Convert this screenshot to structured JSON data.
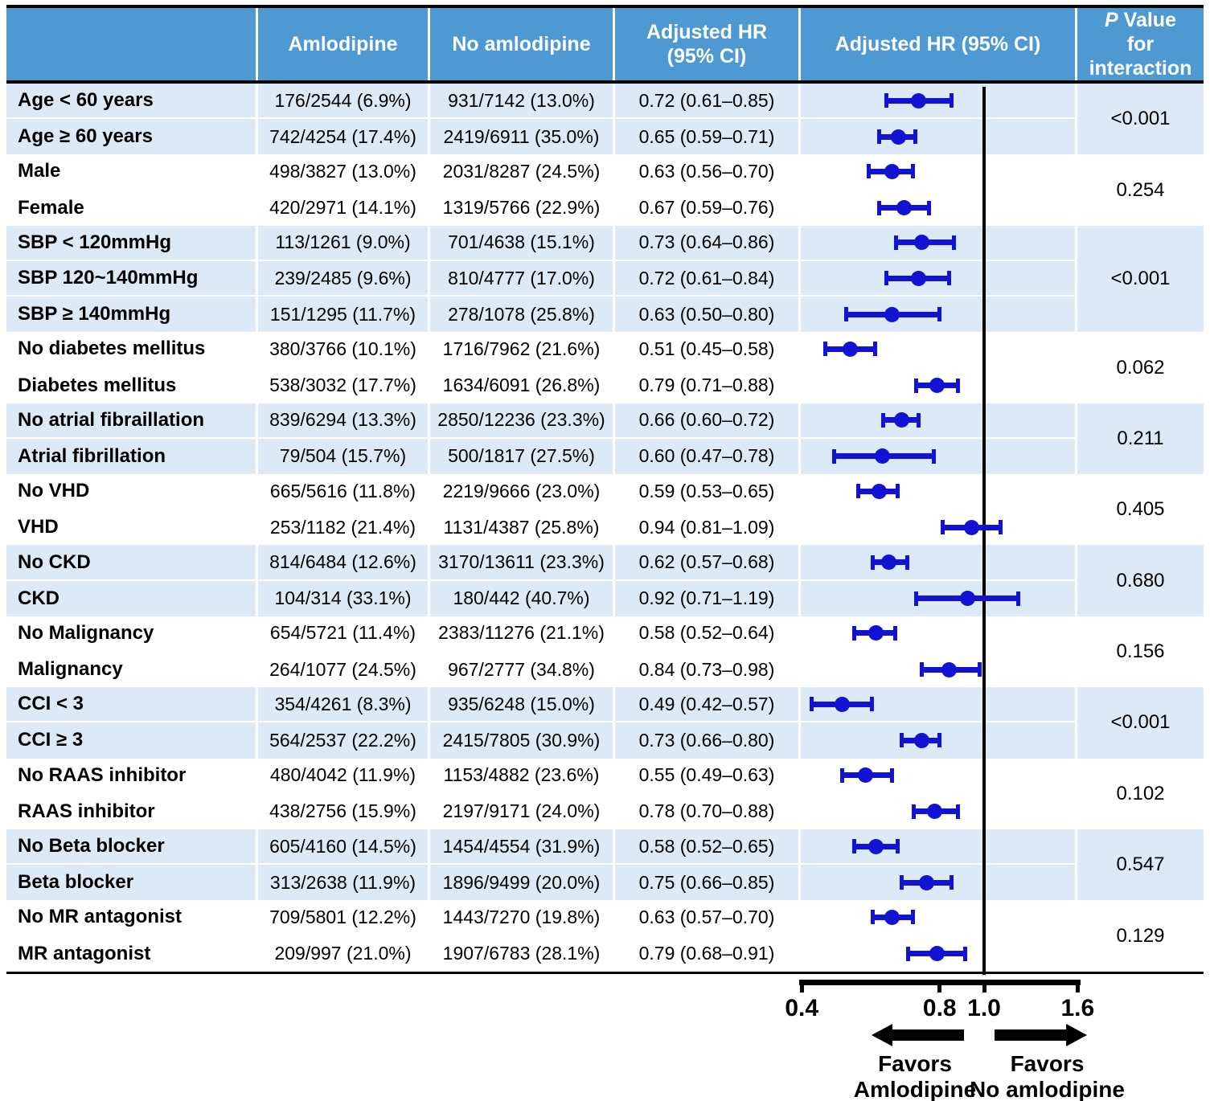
{
  "header": {
    "label_col": "",
    "amlodipine": "Amlodipine",
    "no_amlodipine": "No amlodipine",
    "hr_text_col": "Adjusted HR\n(95% CI)",
    "hr_plot_col": "Adjusted HR (95% CI)",
    "p_col_italic": "P",
    "p_col_rest": " Value\nfor\ninteraction"
  },
  "footer": {
    "favors_left": "Favors\nAmlodipine",
    "favors_right": "Favors\nNo amlodipine"
  },
  "colors": {
    "header_bg": "#4f99d2",
    "band_blue": "#dce9f6",
    "band_white": "#ffffff",
    "marker_blue": "#1212d4",
    "line_black": "#000000"
  },
  "chart_data": {
    "type": "scatter",
    "variant": "forest-plot",
    "x_scale": "log",
    "x_ticks": [
      0.4,
      0.8,
      1.0,
      1.6
    ],
    "x_tick_labels": [
      "0.4",
      "0.8",
      "1.0",
      "1.6"
    ],
    "xlim": [
      0.4,
      1.75
    ],
    "reference_line": 1.0,
    "legend": "none",
    "grid": false,
    "columns": [
      "",
      "Amlodipine",
      "No amlodipine",
      "Adjusted HR (95% CI)",
      "Adjusted HR (95% CI)",
      "P Value for interaction"
    ],
    "groups": [
      {
        "p_value": "<0.001",
        "band": "blue",
        "rows": [
          {
            "label": "Age < 60 years",
            "amlodipine": "176/2544 (6.9%)",
            "no_amlodipine": "931/7142 (13.0%)",
            "hr_text": "0.72 (0.61–0.85)",
            "hr": 0.72,
            "ci": [
              0.61,
              0.85
            ]
          },
          {
            "label": "Age ≥ 60 years",
            "amlodipine": "742/4254 (17.4%)",
            "no_amlodipine": "2419/6911 (35.0%)",
            "hr_text": "0.65 (0.59–0.71)",
            "hr": 0.65,
            "ci": [
              0.59,
              0.71
            ]
          }
        ]
      },
      {
        "p_value": "0.254",
        "band": "white",
        "rows": [
          {
            "label": "Male",
            "amlodipine": "498/3827 (13.0%)",
            "no_amlodipine": "2031/8287 (24.5%)",
            "hr_text": "0.63 (0.56–0.70)",
            "hr": 0.63,
            "ci": [
              0.56,
              0.7
            ]
          },
          {
            "label": "Female",
            "amlodipine": "420/2971 (14.1%)",
            "no_amlodipine": "1319/5766 (22.9%)",
            "hr_text": "0.67 (0.59–0.76)",
            "hr": 0.67,
            "ci": [
              0.59,
              0.76
            ]
          }
        ]
      },
      {
        "p_value": "<0.001",
        "band": "blue",
        "rows": [
          {
            "label": "SBP < 120mmHg",
            "amlodipine": "113/1261 (9.0%)",
            "no_amlodipine": "701/4638 (15.1%)",
            "hr_text": "0.73 (0.64–0.86)",
            "hr": 0.73,
            "ci": [
              0.64,
              0.86
            ]
          },
          {
            "label": "SBP 120~140mmHg",
            "amlodipine": "239/2485 (9.6%)",
            "no_amlodipine": "810/4777 (17.0%)",
            "hr_text": "0.72 (0.61–0.84)",
            "hr": 0.72,
            "ci": [
              0.61,
              0.84
            ]
          },
          {
            "label": "SBP ≥ 140mmHg",
            "amlodipine": "151/1295 (11.7%)",
            "no_amlodipine": "278/1078 (25.8%)",
            "hr_text": "0.63 (0.50–0.80)",
            "hr": 0.63,
            "ci": [
              0.5,
              0.8
            ]
          }
        ]
      },
      {
        "p_value": "0.062",
        "band": "white",
        "rows": [
          {
            "label": "No diabetes mellitus",
            "amlodipine": "380/3766 (10.1%)",
            "no_amlodipine": "1716/7962 (21.6%)",
            "hr_text": "0.51 (0.45–0.58)",
            "hr": 0.51,
            "ci": [
              0.45,
              0.58
            ]
          },
          {
            "label": "Diabetes mellitus",
            "amlodipine": "538/3032 (17.7%)",
            "no_amlodipine": "1634/6091 (26.8%)",
            "hr_text": "0.79 (0.71–0.88)",
            "hr": 0.79,
            "ci": [
              0.71,
              0.88
            ]
          }
        ]
      },
      {
        "p_value": "0.211",
        "band": "blue",
        "rows": [
          {
            "label": "No atrial fibraillation",
            "amlodipine": "839/6294 (13.3%)",
            "no_amlodipine": "2850/12236 (23.3%)",
            "hr_text": "0.66 (0.60–0.72)",
            "hr": 0.66,
            "ci": [
              0.6,
              0.72
            ]
          },
          {
            "label": "Atrial fibrillation",
            "amlodipine": "79/504 (15.7%)",
            "no_amlodipine": "500/1817 (27.5%)",
            "hr_text": "0.60 (0.47–0.78)",
            "hr": 0.6,
            "ci": [
              0.47,
              0.78
            ]
          }
        ]
      },
      {
        "p_value": "0.405",
        "band": "white",
        "rows": [
          {
            "label": "No VHD",
            "amlodipine": "665/5616 (11.8%)",
            "no_amlodipine": "2219/9666 (23.0%)",
            "hr_text": "0.59 (0.53–0.65)",
            "hr": 0.59,
            "ci": [
              0.53,
              0.65
            ]
          },
          {
            "label": "VHD",
            "amlodipine": "253/1182 (21.4%)",
            "no_amlodipine": "1131/4387 (25.8%)",
            "hr_text": "0.94 (0.81–1.09)",
            "hr": 0.94,
            "ci": [
              0.81,
              1.09
            ]
          }
        ]
      },
      {
        "p_value": "0.680",
        "band": "blue",
        "rows": [
          {
            "label": "No CKD",
            "amlodipine": "814/6484 (12.6%)",
            "no_amlodipine": "3170/13611 (23.3%)",
            "hr_text": "0.62 (0.57–0.68)",
            "hr": 0.62,
            "ci": [
              0.57,
              0.68
            ]
          },
          {
            "label": "CKD",
            "amlodipine": "104/314 (33.1%)",
            "no_amlodipine": "180/442 (40.7%)",
            "hr_text": "0.92 (0.71–1.19)",
            "hr": 0.92,
            "ci": [
              0.71,
              1.19
            ]
          }
        ]
      },
      {
        "p_value": "0.156",
        "band": "white",
        "rows": [
          {
            "label": "No Malignancy",
            "amlodipine": "654/5721 (11.4%)",
            "no_amlodipine": "2383/11276 (21.1%)",
            "hr_text": "0.58 (0.52–0.64)",
            "hr": 0.58,
            "ci": [
              0.52,
              0.64
            ]
          },
          {
            "label": "Malignancy",
            "amlodipine": "264/1077 (24.5%)",
            "no_amlodipine": "967/2777 (34.8%)",
            "hr_text": "0.84 (0.73–0.98)",
            "hr": 0.84,
            "ci": [
              0.73,
              0.98
            ]
          }
        ]
      },
      {
        "p_value": "<0.001",
        "band": "blue",
        "rows": [
          {
            "label": "CCI < 3",
            "amlodipine": "354/4261 (8.3%)",
            "no_amlodipine": "935/6248 (15.0%)",
            "hr_text": "0.49 (0.42–0.57)",
            "hr": 0.49,
            "ci": [
              0.42,
              0.57
            ]
          },
          {
            "label": "CCI ≥ 3",
            "amlodipine": "564/2537 (22.2%)",
            "no_amlodipine": "2415/7805 (30.9%)",
            "hr_text": "0.73 (0.66–0.80)",
            "hr": 0.73,
            "ci": [
              0.66,
              0.8
            ]
          }
        ]
      },
      {
        "p_value": "0.102",
        "band": "white",
        "rows": [
          {
            "label": "No RAAS inhibitor",
            "amlodipine": "480/4042 (11.9%)",
            "no_amlodipine": "1153/4882 (23.6%)",
            "hr_text": "0.55 (0.49–0.63)",
            "hr": 0.55,
            "ci": [
              0.49,
              0.63
            ]
          },
          {
            "label": "RAAS inhibitor",
            "amlodipine": "438/2756 (15.9%)",
            "no_amlodipine": "2197/9171 (24.0%)",
            "hr_text": "0.78 (0.70–0.88)",
            "hr": 0.78,
            "ci": [
              0.7,
              0.88
            ]
          }
        ]
      },
      {
        "p_value": "0.547",
        "band": "blue",
        "rows": [
          {
            "label": "No Beta blocker",
            "amlodipine": "605/4160 (14.5%)",
            "no_amlodipine": "1454/4554 (31.9%)",
            "hr_text": "0.58 (0.52–0.65)",
            "hr": 0.58,
            "ci": [
              0.52,
              0.65
            ]
          },
          {
            "label": "Beta blocker",
            "amlodipine": "313/2638 (11.9%)",
            "no_amlodipine": "1896/9499 (20.0%)",
            "hr_text": "0.75 (0.66–0.85)",
            "hr": 0.75,
            "ci": [
              0.66,
              0.85
            ]
          }
        ]
      },
      {
        "p_value": "0.129",
        "band": "white",
        "rows": [
          {
            "label": "No MR antagonist",
            "amlodipine": "709/5801 (12.2%)",
            "no_amlodipine": "1443/7270 (19.8%)",
            "hr_text": "0.63 (0.57–0.70)",
            "hr": 0.63,
            "ci": [
              0.57,
              0.7
            ]
          },
          {
            "label": "MR antagonist",
            "amlodipine": "209/997 (21.0%)",
            "no_amlodipine": "1907/6783 (28.1%)",
            "hr_text": "0.79 (0.68–0.91)",
            "hr": 0.79,
            "ci": [
              0.68,
              0.91
            ]
          }
        ]
      }
    ]
  }
}
